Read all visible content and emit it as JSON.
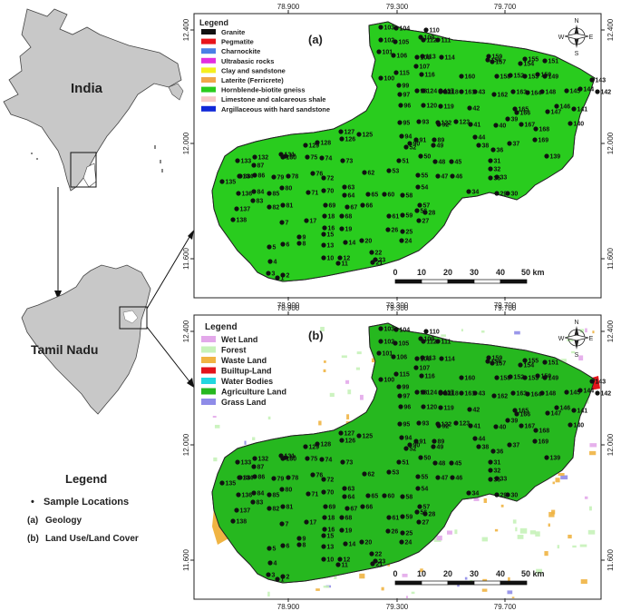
{
  "overview": {
    "india_label": "India",
    "tamil_nadu_label": "Tamil Nadu",
    "legend_title": "Legend",
    "items": [
      {
        "symbol": "•",
        "label": "Sample Locations"
      },
      {
        "symbol": "(a)",
        "label": "Geology"
      },
      {
        "symbol": "(b)",
        "label": "Land Use/Land Cover"
      }
    ]
  },
  "axes": {
    "longitude_ticks": [
      "78.900",
      "79.300",
      "79.700"
    ],
    "latitude_ticks": [
      "12.400",
      "12.000",
      "11.600"
    ]
  },
  "scale_bar": {
    "ticks": [
      "0",
      "10",
      "20",
      "30",
      "40",
      "50 km"
    ]
  },
  "compass": {
    "n": "N",
    "s": "S",
    "e": "E",
    "w": "W"
  },
  "map_a": {
    "panel_label": "(a)",
    "legend_title": "Legend",
    "classes": [
      {
        "label": "Granite",
        "color": "#111111"
      },
      {
        "label": "Pegmatite",
        "color": "#e8141b"
      },
      {
        "label": "Charnockite",
        "color": "#4a7fe6"
      },
      {
        "label": "Ultrabasic rocks",
        "color": "#e22fe0"
      },
      {
        "label": "Clay and sandstone",
        "color": "#f5ef1e"
      },
      {
        "label": "Laterite (Ferricrete)",
        "color": "#f0a74a"
      },
      {
        "label": "Hornblende-biotite gneiss",
        "color": "#29cc1e"
      },
      {
        "label": "Limestone and calcareous shale",
        "color": "#f6c8c8"
      },
      {
        "label": "Argillaceous with hard sandstone",
        "color": "#1028d8"
      }
    ]
  },
  "map_b": {
    "panel_label": "(b)",
    "legend_title": "Legend",
    "classes": [
      {
        "label": "Wet Land",
        "color": "#e3a8ea"
      },
      {
        "label": "Forest",
        "color": "#c6f2b9"
      },
      {
        "label": "Waste Land",
        "color": "#f0b443"
      },
      {
        "label": "Builtup-Land",
        "color": "#e3141b"
      },
      {
        "label": "Water Bodies",
        "color": "#22d7df"
      },
      {
        "label": "Agriculture Land",
        "color": "#26b81f"
      },
      {
        "label": "Grass Land",
        "color": "#8f8ce8"
      }
    ]
  },
  "sample_locations": [
    "1",
    "2",
    "3",
    "4",
    "5",
    "6",
    "7",
    "8",
    "9",
    "10",
    "11",
    "12",
    "13",
    "14",
    "15",
    "16",
    "17",
    "18",
    "19",
    "20",
    "21",
    "22",
    "23",
    "24",
    "25",
    "26",
    "27",
    "28",
    "29",
    "30",
    "31",
    "32",
    "33",
    "34",
    "35",
    "36",
    "37",
    "38",
    "39",
    "40",
    "41",
    "42",
    "43",
    "44",
    "45",
    "46",
    "47",
    "48",
    "49",
    "50",
    "51",
    "52",
    "53",
    "54",
    "55",
    "56",
    "57",
    "58",
    "59",
    "60",
    "61",
    "62",
    "63",
    "64",
    "65",
    "66",
    "67",
    "68",
    "69",
    "70",
    "71",
    "72",
    "73",
    "74",
    "75",
    "76",
    "77",
    "78",
    "79",
    "80",
    "81",
    "82",
    "83",
    "84",
    "85",
    "86",
    "87",
    "88",
    "89",
    "90",
    "91",
    "92",
    "93",
    "94",
    "95",
    "96",
    "97",
    "98",
    "99",
    "100",
    "101",
    "102",
    "103",
    "104",
    "105",
    "106",
    "107",
    "108",
    "109",
    "110",
    "111",
    "112",
    "113",
    "114",
    "115",
    "116",
    "117",
    "118",
    "119",
    "120",
    "121",
    "122",
    "123",
    "124",
    "125",
    "126",
    "127",
    "128",
    "129",
    "130",
    "131",
    "132",
    "133",
    "134",
    "135",
    "136",
    "137",
    "138",
    "139",
    "140",
    "141",
    "142",
    "143",
    "144",
    "145",
    "146",
    "147",
    "148",
    "149",
    "150",
    "151",
    "152",
    "153",
    "154",
    "155",
    "156",
    "157",
    "158",
    "159",
    "160",
    "161",
    "162",
    "163",
    "164",
    "165",
    "166",
    "167",
    "168",
    "169"
  ]
}
